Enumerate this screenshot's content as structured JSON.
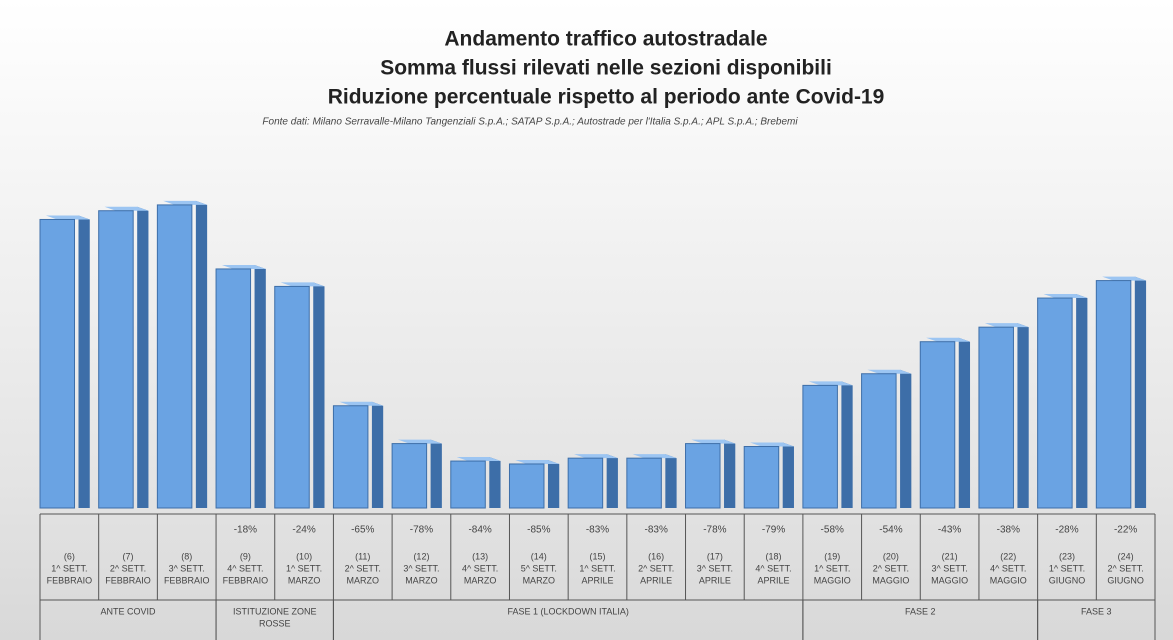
{
  "chart_data": {
    "type": "bar3d",
    "title": [
      "Andamento traffico autostradale",
      "Somma flussi rilevati nelle sezioni disponibili",
      "Riduzione percentuale rispetto al periodo ante Covid-19"
    ],
    "subtitle": "Fonte dati: Milano Serravalle-Milano Tangenziali S.p.A.; SATAP S.p.A.; Autostrade per l'Italia S.p.A.; APL S.p.A.; Brebemi",
    "categories": [
      [
        "(6)",
        "1^ SETT.",
        "FEBBRAIO"
      ],
      [
        "(7)",
        "2^ SETT.",
        "FEBBRAIO"
      ],
      [
        "(8)",
        "3^ SETT.",
        "FEBBRAIO"
      ],
      [
        "(9)",
        "4^ SETT.",
        "FEBBRAIO"
      ],
      [
        "(10)",
        "1^ SETT.",
        "MARZO"
      ],
      [
        "(11)",
        "2^ SETT.",
        "MARZO"
      ],
      [
        "(12)",
        "3^ SETT.",
        "MARZO"
      ],
      [
        "(13)",
        "4^ SETT.",
        "MARZO"
      ],
      [
        "(14)",
        "5^ SETT.",
        "MARZO"
      ],
      [
        "(15)",
        "1^ SETT.",
        "APRILE"
      ],
      [
        "(16)",
        "2^ SETT.",
        "APRILE"
      ],
      [
        "(17)",
        "3^ SETT.",
        "APRILE"
      ],
      [
        "(18)",
        "4^ SETT.",
        "APRILE"
      ],
      [
        "(19)",
        "1^ SETT.",
        "MAGGIO"
      ],
      [
        "(20)",
        "2^ SETT.",
        "MAGGIO"
      ],
      [
        "(21)",
        "3^ SETT.",
        "MAGGIO"
      ],
      [
        "(22)",
        "4^ SETT.",
        "MAGGIO"
      ],
      [
        "(23)",
        "1^ SETT.",
        "GIUGNO"
      ],
      [
        "(24)",
        "2^ SETT.",
        "GIUGNO"
      ]
    ],
    "values": [
      -1,
      2,
      4,
      -18,
      -24,
      -65,
      -78,
      -84,
      -85,
      -83,
      -83,
      -78,
      -79,
      -58,
      -54,
      -43,
      -38,
      -28,
      -22
    ],
    "value_labels": [
      null,
      null,
      null,
      "-18%",
      "-24%",
      "-65%",
      "-78%",
      "-84%",
      "-85%",
      "-83%",
      "-83%",
      "-78%",
      "-79%",
      "-58%",
      "-54%",
      "-43%",
      "-38%",
      "-28%",
      "-22%"
    ],
    "groups": [
      {
        "name": [
          "ANTE COVID"
        ],
        "size": 3
      },
      {
        "name": [
          "ISTITUZIONE ZONE",
          "ROSSE"
        ],
        "size": 2
      },
      {
        "name": [
          "FASE 1 (LOCKDOWN ITALIA)"
        ],
        "size": 8
      },
      {
        "name": [
          "FASE 2"
        ],
        "size": 4
      },
      {
        "name": [
          "FASE 3"
        ],
        "size": 2
      }
    ],
    "color": "#6aa3e3",
    "ylim": [
      -101.5,
      5
    ]
  }
}
